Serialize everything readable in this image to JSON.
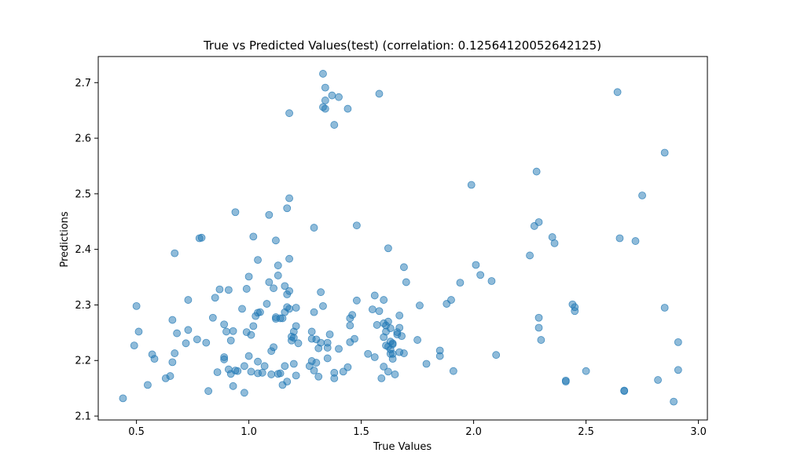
{
  "chart_data": {
    "type": "scatter",
    "title": "True vs Predicted Values(test) (correlation: 0.12564120052642125)",
    "xlabel": "True Values",
    "ylabel": "Predictions",
    "xlim": [
      0.33,
      3.04
    ],
    "ylim": [
      2.093,
      2.747
    ],
    "xticks": [
      0.5,
      1.0,
      1.5,
      2.0,
      2.5,
      3.0
    ],
    "xtick_labels": [
      "0.5",
      "1.0",
      "1.5",
      "2.0",
      "2.5",
      "3.0"
    ],
    "yticks": [
      2.1,
      2.2,
      2.3,
      2.4,
      2.5,
      2.6,
      2.7
    ],
    "ytick_labels": [
      "2.1",
      "2.2",
      "2.3",
      "2.4",
      "2.5",
      "2.6",
      "2.7"
    ],
    "grid": false,
    "marker_color": "#1f77b4",
    "marker_alpha": 0.5,
    "points": [
      [
        0.44,
        2.132
      ],
      [
        0.49,
        2.227
      ],
      [
        0.5,
        2.298
      ],
      [
        0.51,
        2.252
      ],
      [
        0.55,
        2.156
      ],
      [
        0.57,
        2.211
      ],
      [
        0.58,
        2.203
      ],
      [
        0.63,
        2.168
      ],
      [
        0.65,
        2.172
      ],
      [
        0.66,
        2.197
      ],
      [
        0.66,
        2.273
      ],
      [
        0.67,
        2.213
      ],
      [
        0.67,
        2.393
      ],
      [
        0.68,
        2.249
      ],
      [
        0.72,
        2.231
      ],
      [
        0.73,
        2.309
      ],
      [
        0.73,
        2.255
      ],
      [
        0.77,
        2.238
      ],
      [
        0.78,
        2.42
      ],
      [
        0.79,
        2.421
      ],
      [
        0.81,
        2.232
      ],
      [
        0.82,
        2.145
      ],
      [
        0.84,
        2.277
      ],
      [
        0.85,
        2.313
      ],
      [
        0.86,
        2.179
      ],
      [
        0.87,
        2.328
      ],
      [
        0.89,
        2.265
      ],
      [
        0.89,
        2.206
      ],
      [
        0.89,
        2.202
      ],
      [
        0.9,
        2.252
      ],
      [
        0.91,
        2.184
      ],
      [
        0.91,
        2.327
      ],
      [
        0.92,
        2.176
      ],
      [
        0.92,
        2.236
      ],
      [
        0.93,
        2.154
      ],
      [
        0.93,
        2.253
      ],
      [
        0.94,
        2.467
      ],
      [
        0.94,
        2.182
      ],
      [
        0.95,
        2.181
      ],
      [
        0.97,
        2.293
      ],
      [
        0.98,
        2.19
      ],
      [
        0.98,
        2.142
      ],
      [
        0.99,
        2.251
      ],
      [
        0.99,
        2.329
      ],
      [
        1.0,
        2.351
      ],
      [
        1.0,
        2.208
      ],
      [
        1.01,
        2.18
      ],
      [
        1.01,
        2.246
      ],
      [
        1.02,
        2.262
      ],
      [
        1.02,
        2.423
      ],
      [
        1.03,
        2.28
      ],
      [
        1.04,
        2.286
      ],
      [
        1.04,
        2.381
      ],
      [
        1.04,
        2.198
      ],
      [
        1.04,
        2.177
      ],
      [
        1.05,
        2.287
      ],
      [
        1.06,
        2.178
      ],
      [
        1.07,
        2.19
      ],
      [
        1.08,
        2.302
      ],
      [
        1.09,
        2.341
      ],
      [
        1.09,
        2.462
      ],
      [
        1.1,
        2.175
      ],
      [
        1.1,
        2.217
      ],
      [
        1.11,
        2.33
      ],
      [
        1.11,
        2.224
      ],
      [
        1.12,
        2.278
      ],
      [
        1.12,
        2.416
      ],
      [
        1.12,
        2.275
      ],
      [
        1.13,
        2.353
      ],
      [
        1.13,
        2.176
      ],
      [
        1.13,
        2.371
      ],
      [
        1.14,
        2.276
      ],
      [
        1.14,
        2.177
      ],
      [
        1.15,
        2.156
      ],
      [
        1.15,
        2.276
      ],
      [
        1.16,
        2.287
      ],
      [
        1.16,
        2.19
      ],
      [
        1.16,
        2.334
      ],
      [
        1.17,
        2.474
      ],
      [
        1.17,
        2.319
      ],
      [
        1.17,
        2.296
      ],
      [
        1.17,
        2.162
      ],
      [
        1.18,
        2.492
      ],
      [
        1.18,
        2.383
      ],
      [
        1.18,
        2.325
      ],
      [
        1.18,
        2.293
      ],
      [
        1.18,
        2.645
      ],
      [
        1.19,
        2.236
      ],
      [
        1.19,
        2.243
      ],
      [
        1.2,
        2.252
      ],
      [
        1.2,
        2.241
      ],
      [
        1.2,
        2.194
      ],
      [
        1.21,
        2.173
      ],
      [
        1.21,
        2.262
      ],
      [
        1.21,
        2.295
      ],
      [
        1.22,
        2.231
      ],
      [
        1.27,
        2.19
      ],
      [
        1.28,
        2.199
      ],
      [
        1.28,
        2.252
      ],
      [
        1.28,
        2.239
      ],
      [
        1.29,
        2.439
      ],
      [
        1.29,
        2.287
      ],
      [
        1.29,
        2.182
      ],
      [
        1.3,
        2.196
      ],
      [
        1.3,
        2.238
      ],
      [
        1.31,
        2.222
      ],
      [
        1.31,
        2.171
      ],
      [
        1.32,
        2.323
      ],
      [
        1.32,
        2.232
      ],
      [
        1.33,
        2.298
      ],
      [
        1.33,
        2.716
      ],
      [
        1.33,
        2.656
      ],
      [
        1.34,
        2.653
      ],
      [
        1.34,
        2.668
      ],
      [
        1.34,
        2.691
      ],
      [
        1.35,
        2.223
      ],
      [
        1.35,
        2.204
      ],
      [
        1.35,
        2.232
      ],
      [
        1.36,
        2.247
      ],
      [
        1.37,
        2.677
      ],
      [
        1.38,
        2.624
      ],
      [
        1.38,
        2.168
      ],
      [
        1.38,
        2.178
      ],
      [
        1.4,
        2.674
      ],
      [
        1.4,
        2.221
      ],
      [
        1.42,
        2.18
      ],
      [
        1.44,
        2.653
      ],
      [
        1.44,
        2.188
      ],
      [
        1.45,
        2.276
      ],
      [
        1.45,
        2.263
      ],
      [
        1.45,
        2.233
      ],
      [
        1.46,
        2.282
      ],
      [
        1.47,
        2.239
      ],
      [
        1.48,
        2.443
      ],
      [
        1.48,
        2.308
      ],
      [
        1.53,
        2.212
      ],
      [
        1.55,
        2.292
      ],
      [
        1.56,
        2.317
      ],
      [
        1.56,
        2.206
      ],
      [
        1.57,
        2.264
      ],
      [
        1.58,
        2.68
      ],
      [
        1.58,
        2.289
      ],
      [
        1.59,
        2.168
      ],
      [
        1.6,
        2.242
      ],
      [
        1.6,
        2.309
      ],
      [
        1.6,
        2.267
      ],
      [
        1.6,
        2.189
      ],
      [
        1.61,
        2.252
      ],
      [
        1.61,
        2.227
      ],
      [
        1.61,
        2.263
      ],
      [
        1.62,
        2.27
      ],
      [
        1.62,
        2.18
      ],
      [
        1.62,
        2.225
      ],
      [
        1.62,
        2.402
      ],
      [
        1.63,
        2.212
      ],
      [
        1.63,
        2.258
      ],
      [
        1.63,
        2.22
      ],
      [
        1.63,
        2.234
      ],
      [
        1.64,
        2.229
      ],
      [
        1.64,
        2.203
      ],
      [
        1.64,
        2.212
      ],
      [
        1.64,
        2.231
      ],
      [
        1.65,
        2.175
      ],
      [
        1.66,
        2.247
      ],
      [
        1.66,
        2.251
      ],
      [
        1.67,
        2.259
      ],
      [
        1.67,
        2.215
      ],
      [
        1.67,
        2.281
      ],
      [
        1.68,
        2.244
      ],
      [
        1.69,
        2.213
      ],
      [
        1.69,
        2.368
      ],
      [
        1.7,
        2.341
      ],
      [
        1.75,
        2.237
      ],
      [
        1.76,
        2.299
      ],
      [
        1.79,
        2.194
      ],
      [
        1.85,
        2.218
      ],
      [
        1.85,
        2.208
      ],
      [
        1.88,
        2.302
      ],
      [
        1.9,
        2.309
      ],
      [
        1.91,
        2.181
      ],
      [
        1.94,
        2.34
      ],
      [
        1.99,
        2.516
      ],
      [
        2.01,
        2.372
      ],
      [
        2.03,
        2.354
      ],
      [
        2.08,
        2.343
      ],
      [
        2.1,
        2.21
      ],
      [
        2.25,
        2.389
      ],
      [
        2.27,
        2.442
      ],
      [
        2.28,
        2.54
      ],
      [
        2.29,
        2.277
      ],
      [
        2.29,
        2.259
      ],
      [
        2.29,
        2.449
      ],
      [
        2.3,
        2.237
      ],
      [
        2.35,
        2.422
      ],
      [
        2.36,
        2.411
      ],
      [
        2.41,
        2.164
      ],
      [
        2.41,
        2.162
      ],
      [
        2.44,
        2.301
      ],
      [
        2.45,
        2.296
      ],
      [
        2.45,
        2.289
      ],
      [
        2.5,
        2.181
      ],
      [
        2.64,
        2.683
      ],
      [
        2.65,
        2.42
      ],
      [
        2.67,
        2.145
      ],
      [
        2.67,
        2.146
      ],
      [
        2.72,
        2.415
      ],
      [
        2.75,
        2.497
      ],
      [
        2.82,
        2.165
      ],
      [
        2.85,
        2.574
      ],
      [
        2.85,
        2.295
      ],
      [
        2.89,
        2.126
      ],
      [
        2.91,
        2.233
      ],
      [
        2.91,
        2.183
      ]
    ]
  }
}
